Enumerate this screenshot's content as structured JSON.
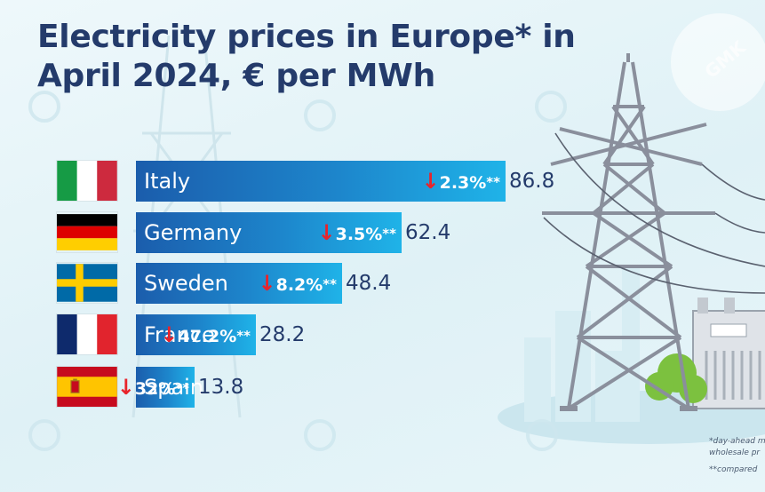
{
  "chart_data": {
    "type": "bar",
    "orientation": "horizontal",
    "title": "Electricity prices in Europe* in April 2024, € per MWh",
    "unit": "€ per MWh",
    "categories": [
      "Italy",
      "Germany",
      "Sweden",
      "France",
      "Spain"
    ],
    "values": [
      86.8,
      62.4,
      48.4,
      28.2,
      13.8
    ],
    "value_labels": [
      "86.8",
      "62.4",
      "48.4",
      "28.2",
      "13.8"
    ],
    "changes": [
      {
        "arrow": "↓",
        "value": "2.3%",
        "stars": "**"
      },
      {
        "arrow": "↓",
        "value": "3.5%",
        "stars": "**"
      },
      {
        "arrow": "↓",
        "value": "8.2%",
        "stars": "**"
      },
      {
        "arrow": "↓",
        "value": "47.2%",
        "stars": "**"
      },
      {
        "arrow": "↓",
        "value": "32%",
        "stars": "**"
      }
    ],
    "change_direction": "down",
    "xlim": [
      0,
      86.8
    ],
    "legend": "none",
    "grid": false
  },
  "header": {
    "title_line1": "Electricity prices in Europe* in",
    "title_line2": "April 2024, € per MWh"
  },
  "footnotes": {
    "line1": "*day-ahead m",
    "line2": "wholesale pr",
    "line3": "**compared"
  },
  "watermark": "GMK",
  "colors": {
    "title": "#243b6b",
    "bar_start": "#1b5dac",
    "bar_end": "#1fb3e8",
    "arrow": "#e8242b",
    "value_text": "#243b6b"
  },
  "flags": [
    "italy-flag",
    "germany-flag",
    "sweden-flag",
    "france-flag",
    "spain-flag"
  ]
}
